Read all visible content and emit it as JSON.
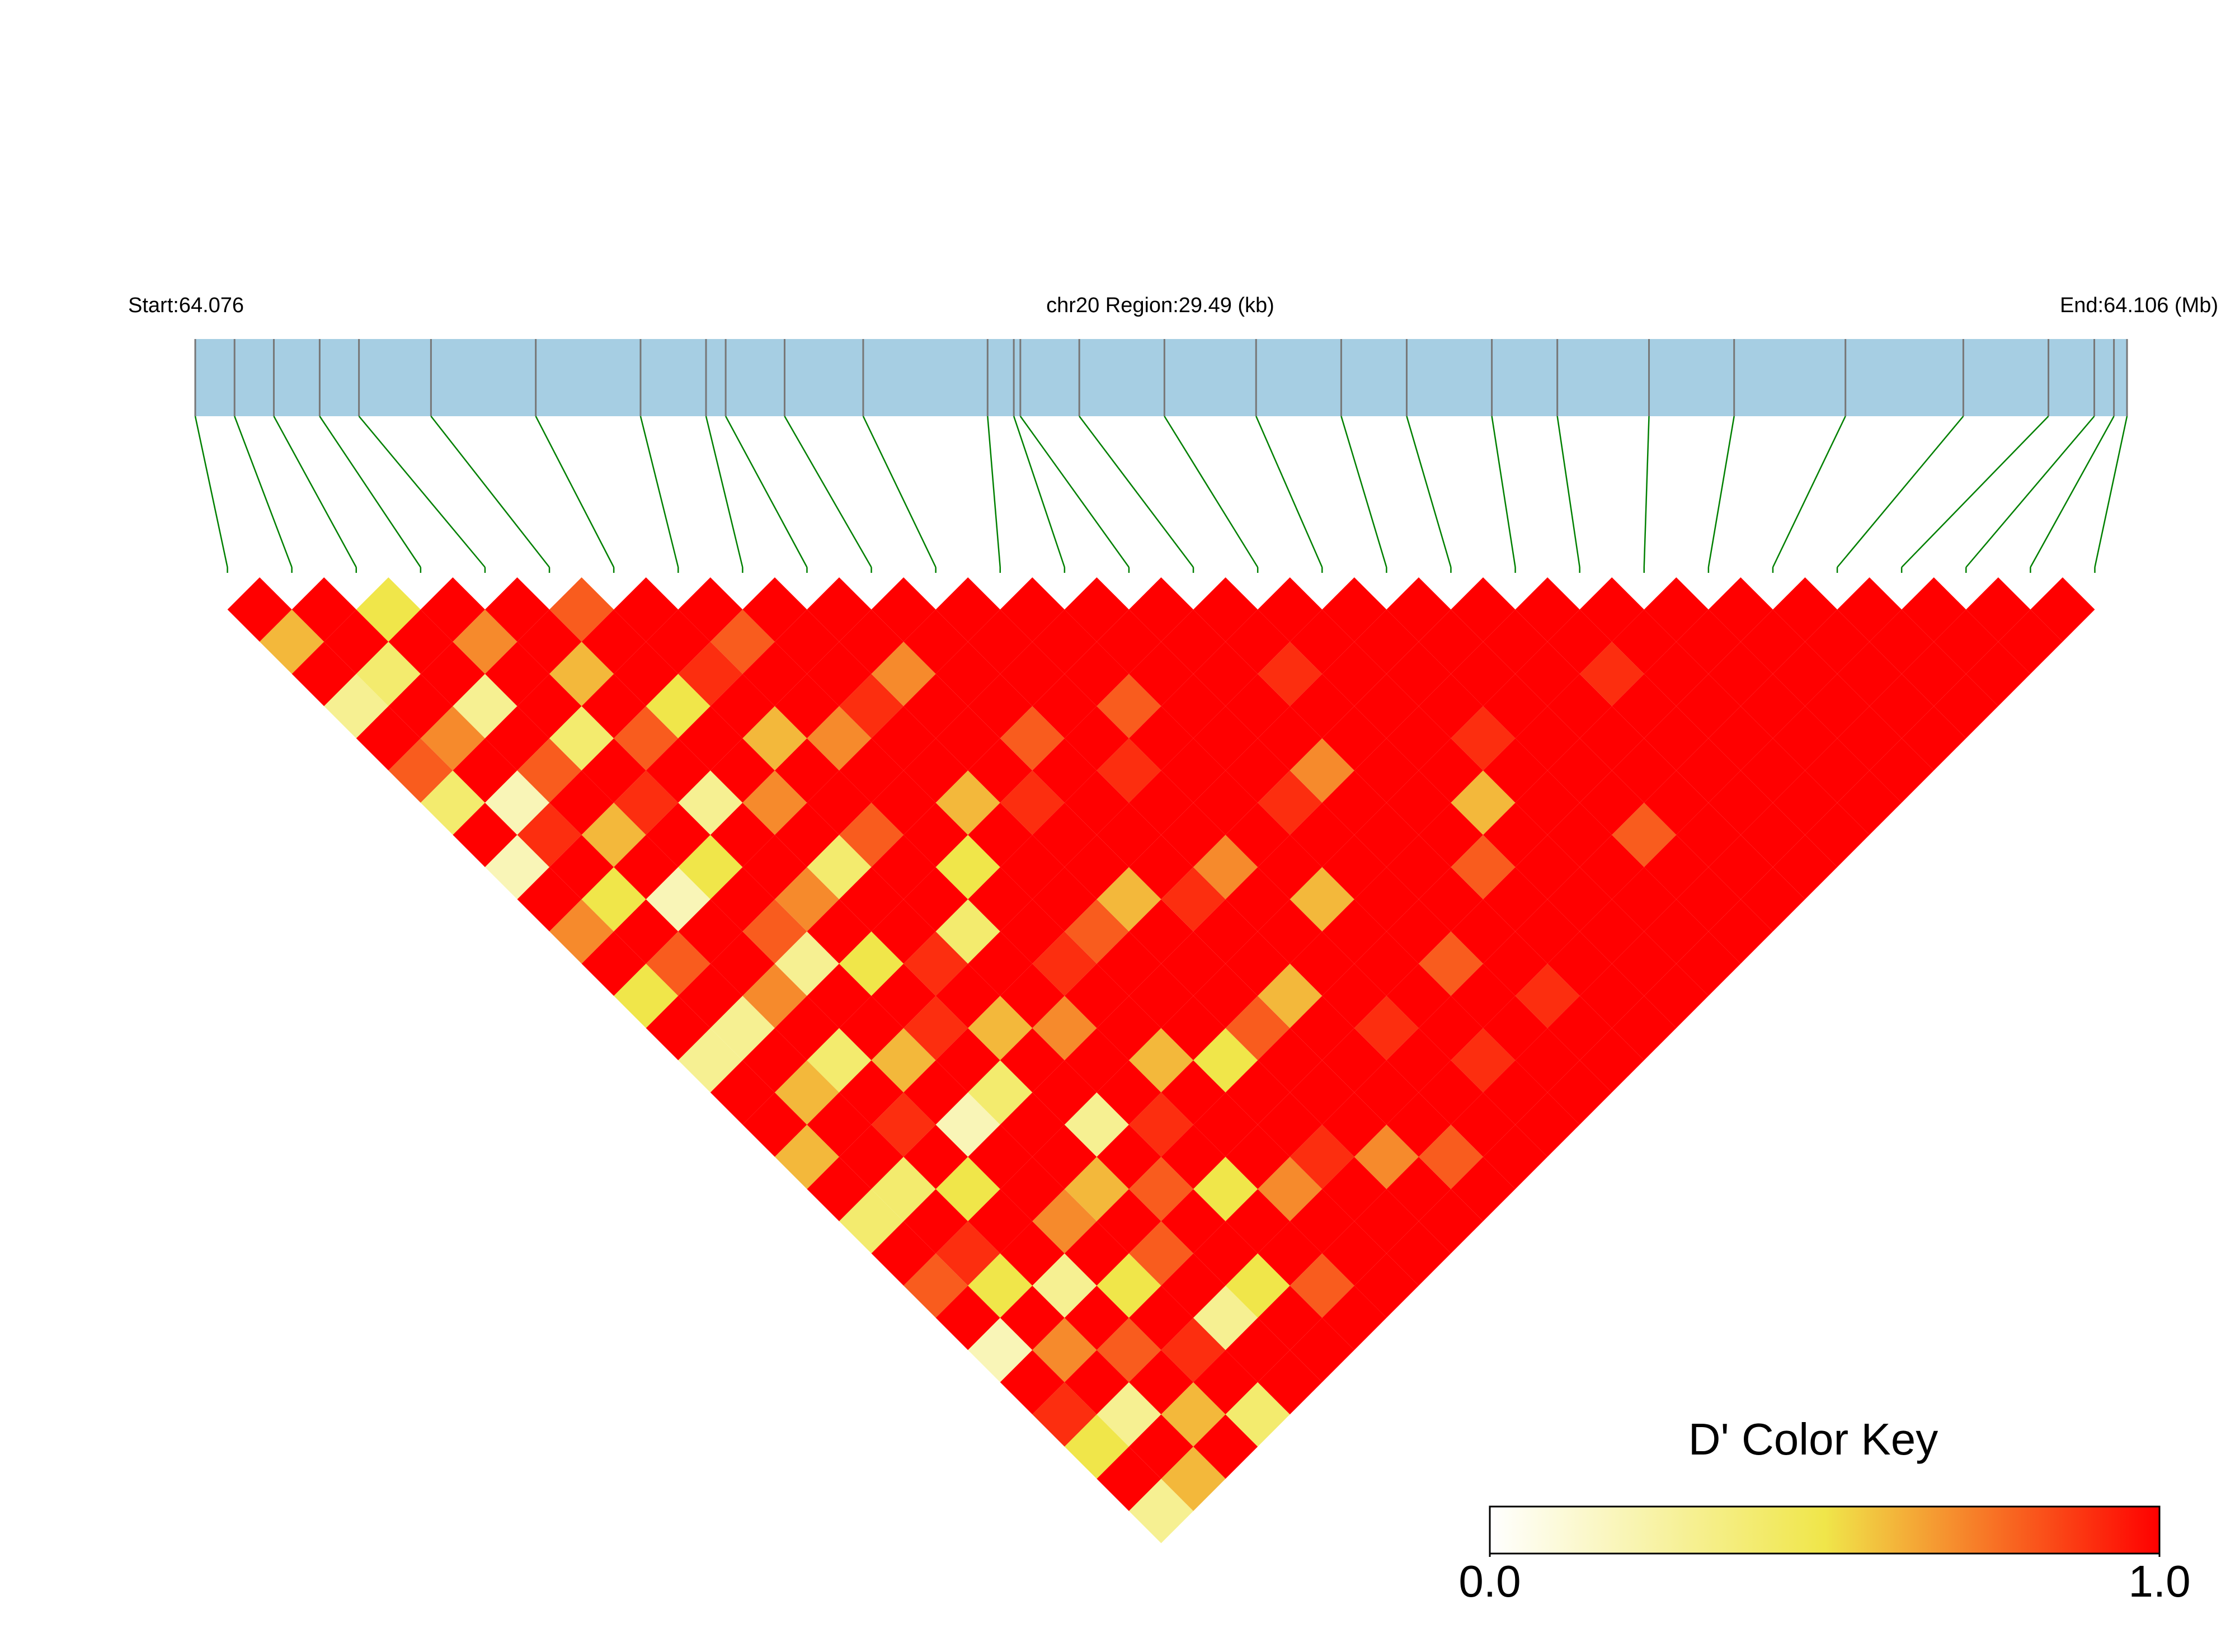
{
  "chart_data": {
    "type": "ld_heatmap",
    "start_label": "Start:64.076",
    "region_label": "chr20 Region:29.49 (kb)",
    "end_label": "End:64.106 (Mb)",
    "key_title": "D' Color Key",
    "x": [
      64.076,
      64.0766,
      64.0772,
      64.0779,
      64.0785,
      64.0796,
      64.0812,
      64.0828,
      64.0838,
      64.0841,
      64.085,
      64.0862,
      64.0881,
      64.0885,
      64.0886,
      64.0895,
      64.0908,
      64.0922,
      64.0935,
      64.0945,
      64.0958,
      64.0968,
      64.0982,
      64.0995,
      64.1012,
      64.103,
      64.1043,
      64.105,
      64.1053,
      64.1055
    ],
    "xlim": [
      64.076,
      64.1055
    ],
    "matrix": [
      [
        1,
        0.6,
        1,
        0.3,
        1,
        0.8,
        0.4,
        1,
        0.2,
        1,
        0.7,
        1,
        0.5,
        1,
        0.3,
        1,
        1,
        0.6,
        1,
        0.4,
        1,
        0.8,
        1,
        0.2,
        1,
        0.9,
        0.5,
        1,
        0.3
      ],
      [
        1,
        1,
        0.4,
        1,
        0.7,
        1,
        0.2,
        0.9,
        1,
        0.5,
        1,
        0.8,
        1,
        0.3,
        1,
        0.6,
        1,
        1,
        0.4,
        1,
        0.9,
        0.5,
        1,
        0.7,
        1,
        0.3,
        1,
        0.6
      ],
      [
        0.5,
        1,
        1,
        0.3,
        1,
        0.8,
        1,
        0.6,
        1,
        0.2,
        1,
        1,
        0.7,
        1,
        0.4,
        1,
        0.9,
        1,
        0.5,
        1,
        1,
        0.3,
        1,
        0.8,
        1,
        0.6,
        1
      ],
      [
        1,
        0.7,
        1,
        1,
        0.4,
        1,
        0.9,
        1,
        0.5,
        1,
        0.8,
        0.3,
        1,
        1,
        0.6,
        1,
        0.2,
        1,
        1,
        0.7,
        1,
        0.5,
        1,
        0.9,
        1,
        0.4
      ],
      [
        1,
        1,
        0.6,
        1,
        0.8,
        1,
        0.3,
        1,
        1,
        0.7,
        1,
        0.5,
        1,
        0.9,
        1,
        0.4,
        1,
        1,
        0.6,
        1,
        0.8,
        1,
        0.3,
        1,
        1
      ],
      [
        0.8,
        1,
        1,
        0.5,
        1,
        1,
        0.7,
        1,
        0.4,
        1,
        1,
        0.9,
        1,
        0.6,
        1,
        1,
        0.3,
        1,
        0.8,
        1,
        1,
        0.5,
        1,
        1
      ],
      [
        1,
        1,
        0.9,
        1,
        0.6,
        1,
        1,
        0.8,
        1,
        1,
        0.4,
        1,
        1,
        0.7,
        1,
        1,
        0.9,
        1,
        0.5,
        1,
        1,
        0.8,
        1
      ],
      [
        1,
        0.8,
        1,
        1,
        0.7,
        1,
        1,
        1,
        0.5,
        1,
        1,
        0.9,
        1,
        1,
        0.6,
        1,
        1,
        1,
        0.7,
        1,
        1,
        1
      ],
      [
        1,
        1,
        1,
        0.9,
        1,
        1,
        0.6,
        1,
        1,
        1,
        0.8,
        1,
        1,
        1,
        0.5,
        1,
        1,
        0.9,
        1,
        1,
        1
      ],
      [
        1,
        1,
        0.7,
        1,
        1,
        1,
        0.9,
        1,
        1,
        0.6,
        1,
        1,
        1,
        0.8,
        1,
        1,
        1,
        0.7,
        1,
        1
      ],
      [
        1,
        1,
        1,
        1,
        0.8,
        1,
        1,
        1,
        1,
        0.9,
        1,
        1,
        0.6,
        1,
        1,
        1,
        1,
        0.8,
        1
      ],
      [
        1,
        1,
        1,
        1,
        1,
        0.9,
        1,
        1,
        0.7,
        1,
        1,
        1,
        1,
        0.9,
        1,
        1,
        1,
        1
      ],
      [
        1,
        1,
        1,
        0.8,
        1,
        1,
        1,
        1,
        1,
        0.6,
        1,
        1,
        1,
        1,
        0.9,
        1,
        1
      ],
      [
        1,
        1,
        1,
        1,
        1,
        1,
        0.9,
        1,
        1,
        1,
        1,
        0.8,
        1,
        1,
        1,
        1
      ],
      [
        1,
        1,
        1,
        1,
        1,
        0.7,
        1,
        1,
        1,
        1,
        1,
        1,
        0.9,
        1,
        1
      ],
      [
        1,
        1,
        0.9,
        1,
        1,
        1,
        1,
        1,
        0.8,
        1,
        1,
        1,
        1,
        1
      ],
      [
        1,
        1,
        1,
        1,
        1,
        1,
        0.6,
        1,
        1,
        1,
        1,
        1,
        1
      ],
      [
        1,
        1,
        1,
        1,
        0.9,
        1,
        1,
        1,
        1,
        1,
        1,
        1
      ],
      [
        1,
        1,
        1,
        1,
        1,
        1,
        1,
        0.8,
        1,
        1,
        1
      ],
      [
        1,
        1,
        1,
        1,
        1,
        1,
        1,
        1,
        1,
        1
      ],
      [
        1,
        1,
        0.9,
        1,
        1,
        1,
        1,
        1,
        1
      ],
      [
        1,
        1,
        1,
        1,
        1,
        1,
        1,
        1
      ],
      [
        1,
        1,
        1,
        1,
        1,
        1,
        1
      ],
      [
        1,
        1,
        1,
        1,
        1,
        1
      ],
      [
        1,
        1,
        1,
        1,
        1
      ],
      [
        1,
        1,
        1,
        1
      ],
      [
        1,
        1,
        1
      ],
      [
        1,
        1
      ],
      [
        1
      ]
    ],
    "zlim": [
      0,
      1
    ],
    "zticks": [
      {
        "value": 0,
        "label": "0.0"
      },
      {
        "value": 1,
        "label": "1.0"
      }
    ],
    "colors": [
      "#ffffff",
      "#f0e64a",
      "#ff0000"
    ],
    "bar_color": "#a6cee3",
    "marker_color": "#777777",
    "link_color": "#008000"
  }
}
